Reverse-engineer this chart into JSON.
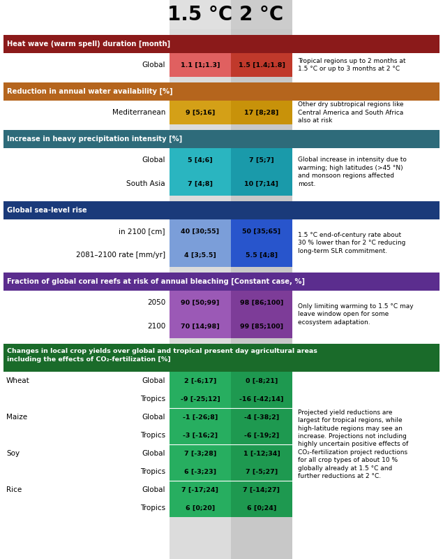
{
  "header_1_5": "1.5 °C",
  "header_2": "2 °C",
  "sections": [
    {
      "title": "Heat wave (warm spell) duration [month]",
      "title_bg": "#8b1a1a",
      "title_color": "#ffffff",
      "rows": [
        {
          "label": "Global",
          "sublabel": null,
          "val1": "1.1 [1;1.3]",
          "val2": "1.5 [1.4;1.8]",
          "cell1_bg": "#e06060",
          "cell2_bg": "#c0392b",
          "note": "Tropical regions up to 2 months at\n1.5 °C or up to 3 months at 2 °C"
        }
      ]
    },
    {
      "title": "Reduction in annual water availability [%]",
      "title_bg": "#b5651d",
      "title_color": "#ffffff",
      "rows": [
        {
          "label": "Mediterranean",
          "sublabel": null,
          "val1": "9 [5;16]",
          "val2": "17 [8;28]",
          "cell1_bg": "#d4a017",
          "cell2_bg": "#c8920a",
          "note": "Other dry subtropical regions like\nCentral America and South Africa\nalso at risk"
        }
      ]
    },
    {
      "title": "Increase in heavy precipitation intensity [%]",
      "title_bg": "#2e6b7a",
      "title_color": "#ffffff",
      "rows": [
        {
          "label": "Global",
          "sublabel": null,
          "val1": "5 [4;6]",
          "val2": "7 [5;7]",
          "cell1_bg": "#2ab5c0",
          "cell2_bg": "#1a9aaa",
          "note": "Global increase in intensity due to\nwarming; high latitudes (>45 °N)\nand monsoon regions affected\nmost."
        },
        {
          "label": "South Asia",
          "sublabel": null,
          "val1": "7 [4;8]",
          "val2": "10 [7;14]",
          "cell1_bg": "#2ab5c0",
          "cell2_bg": "#1a9aaa",
          "note": ""
        }
      ]
    },
    {
      "title": "Global sea-level rise",
      "title_bg": "#1a3a7a",
      "title_color": "#ffffff",
      "rows": [
        {
          "label": "in 2100 [cm]",
          "sublabel": null,
          "val1": "40 [30;55]",
          "val2": "50 [35;65]",
          "cell1_bg": "#7b9ed9",
          "cell2_bg": "#2855cc",
          "note": "1.5 °C end-of-century rate about\n30 % lower than for 2 °C reducing\nlong-term SLR commitment."
        },
        {
          "label": "2081–2100 rate [mm/yr]",
          "sublabel": null,
          "val1": "4 [3;5.5]",
          "val2": "5.5 [4;8]",
          "cell1_bg": "#7b9ed9",
          "cell2_bg": "#2855cc",
          "note": ""
        }
      ]
    },
    {
      "title": "Fraction of global coral reefs at risk of annual bleaching [Constant case, %]",
      "title_bg": "#5b2d8e",
      "title_color": "#ffffff",
      "rows": [
        {
          "label": "2050",
          "sublabel": null,
          "val1": "90 [50;99]",
          "val2": "98 [86;100]",
          "cell1_bg": "#9b59b6",
          "cell2_bg": "#7d3c98",
          "note": "Only limiting warming to 1.5 °C may\nleave window open for some\necosystem adaptation."
        },
        {
          "label": "2100",
          "sublabel": null,
          "val1": "70 [14;98]",
          "val2": "99 [85;100]",
          "cell1_bg": "#9b59b6",
          "cell2_bg": "#7d3c98",
          "note": ""
        }
      ]
    },
    {
      "title": "Changes in local crop yields over global and tropical present day agricultural areas\nincluding the effects of CO₂-fertilization [%]",
      "title_bg": "#1a6b2a",
      "title_color": "#ffffff",
      "rows": [
        {
          "label": "Wheat",
          "sublabel": "Global",
          "val1": "2 [-6;17]",
          "val2": "0 [-8;21]",
          "cell1_bg": "#27ae60",
          "cell2_bg": "#1e9950",
          "note": "Projected yield reductions are\nlargest for tropical regions, while\nhigh-latitude regions may see an\nincrease. Projections not including\nhighly uncertain positive effects of\nCO₂-fertilization project reductions\nfor all crop types of about 10 %\nglobally already at 1.5 °C and\nfurther reductions at 2 °C."
        },
        {
          "label": "",
          "sublabel": "Tropics",
          "val1": "-9 [-25;12]",
          "val2": "-16 [-42;14]",
          "cell1_bg": "#27ae60",
          "cell2_bg": "#1e9950",
          "note": ""
        },
        {
          "label": "Maize",
          "sublabel": "Global",
          "val1": "-1 [-26;8]",
          "val2": "-4 [-38;2]",
          "cell1_bg": "#27ae60",
          "cell2_bg": "#1e9950",
          "note": ""
        },
        {
          "label": "",
          "sublabel": "Tropics",
          "val1": "-3 [-16;2]",
          "val2": "-6 [-19;2]",
          "cell1_bg": "#27ae60",
          "cell2_bg": "#1e9950",
          "note": ""
        },
        {
          "label": "Soy",
          "sublabel": "Global",
          "val1": "7 [-3;28]",
          "val2": "1 [-12;34]",
          "cell1_bg": "#27ae60",
          "cell2_bg": "#1e9950",
          "note": ""
        },
        {
          "label": "",
          "sublabel": "Tropics",
          "val1": "6 [-3;23]",
          "val2": "7 [-5;27]",
          "cell1_bg": "#27ae60",
          "cell2_bg": "#1e9950",
          "note": ""
        },
        {
          "label": "Rice",
          "sublabel": "Global",
          "val1": "7 [-17;24]",
          "val2": "7 [-14;27]",
          "cell1_bg": "#27ae60",
          "cell2_bg": "#1e9950",
          "note": ""
        },
        {
          "label": "",
          "sublabel": "Tropics",
          "val1": "6 [0;20]",
          "val2": "6 [0;24]",
          "cell1_bg": "#27ae60",
          "cell2_bg": "#1e9950",
          "note": ""
        }
      ]
    }
  ],
  "bg_color": "#ffffff"
}
